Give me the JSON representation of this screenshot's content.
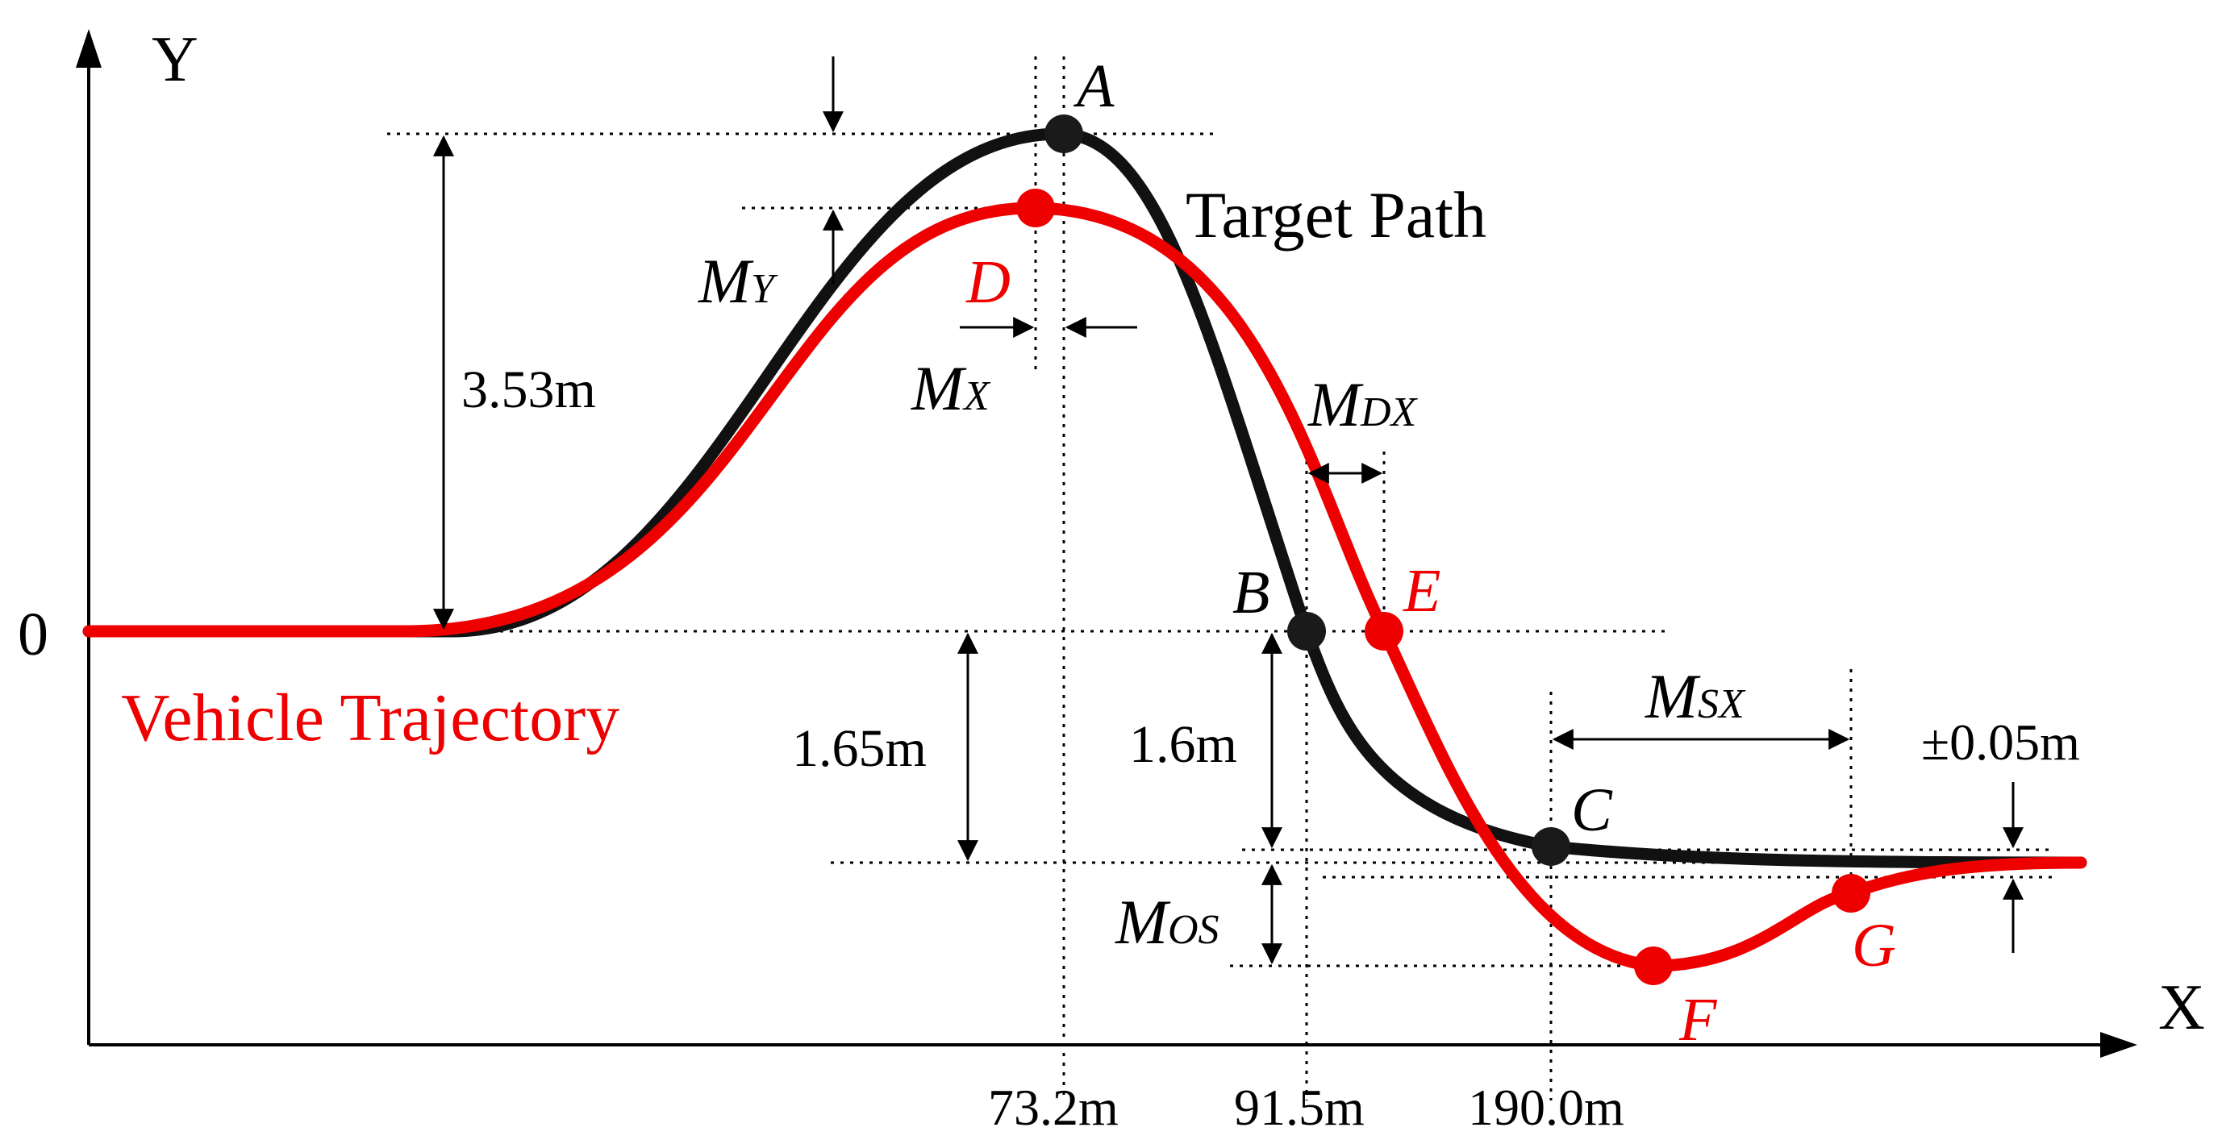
{
  "axes": {
    "x_label": "X",
    "y_label": "Y",
    "origin_label": "0"
  },
  "curves": {
    "target_path_label": "Target Path",
    "vehicle_trajectory_label": "Vehicle Trajectory",
    "target_color": "#111111",
    "vehicle_color": "#ee0000"
  },
  "points": {
    "A": "A",
    "B": "B",
    "C": "C",
    "D": "D",
    "E": "E",
    "F": "F",
    "G": "G"
  },
  "dimensions": {
    "peak_height": "3.53m",
    "settle_depth": "1.65m",
    "b_depth": "1.6m",
    "tolerance": "±0.05m"
  },
  "metrics": {
    "my_main": "M",
    "my_sub": "Y",
    "mx_main": "M",
    "mx_sub": "X",
    "mdx_main": "M",
    "mdx_sub": "DX",
    "msx_main": "M",
    "msx_sub": "SX",
    "mos_main": "M",
    "mos_sub": "OS"
  },
  "x_ticks": [
    "73.2m",
    "91.5m",
    "190.0m"
  ]
}
